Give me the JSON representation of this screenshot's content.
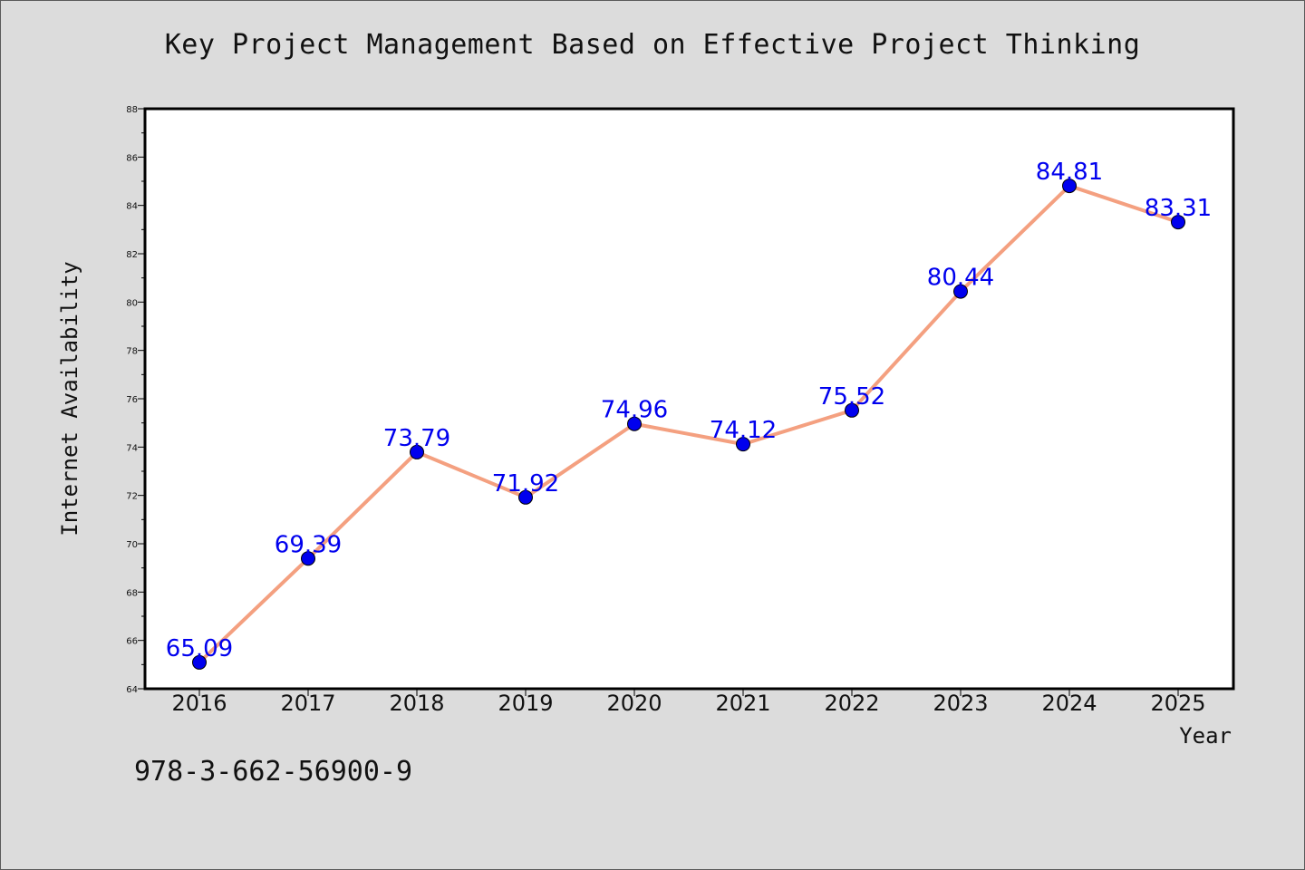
{
  "chart_data": {
    "type": "line",
    "title": "Key Project Management Based on Effective Project Thinking",
    "xlabel": "Year",
    "ylabel": "Internet Availability",
    "categories": [
      "2016",
      "2017",
      "2018",
      "2019",
      "2020",
      "2021",
      "2022",
      "2023",
      "2024",
      "2025"
    ],
    "series": [
      {
        "values": [
          65.09,
          69.39,
          73.79,
          71.92,
          74.96,
          74.12,
          75.52,
          80.44,
          84.81,
          83.31
        ],
        "data_labels": [
          "65.09",
          "69.39",
          "73.79",
          "71.92",
          "74.96",
          "74.12",
          "75.52",
          "80.44",
          "84.81",
          "83.31"
        ],
        "line_color": "#f4a080",
        "marker_color": "#0000ee"
      }
    ],
    "ylim": [
      64,
      88
    ],
    "yticks": [
      "64",
      "66",
      "68",
      "70",
      "72",
      "74",
      "76",
      "78",
      "80",
      "82",
      "84",
      "86",
      "88"
    ],
    "grid": false,
    "legend": "none"
  },
  "annotation": {
    "isbn": "978-3-662-56900-9"
  },
  "colors": {
    "background": "#dcdcdc",
    "plot_background": "#ffffff",
    "line": "#f4a080",
    "markers": "#0000ee",
    "data_labels": "#0000ee"
  }
}
